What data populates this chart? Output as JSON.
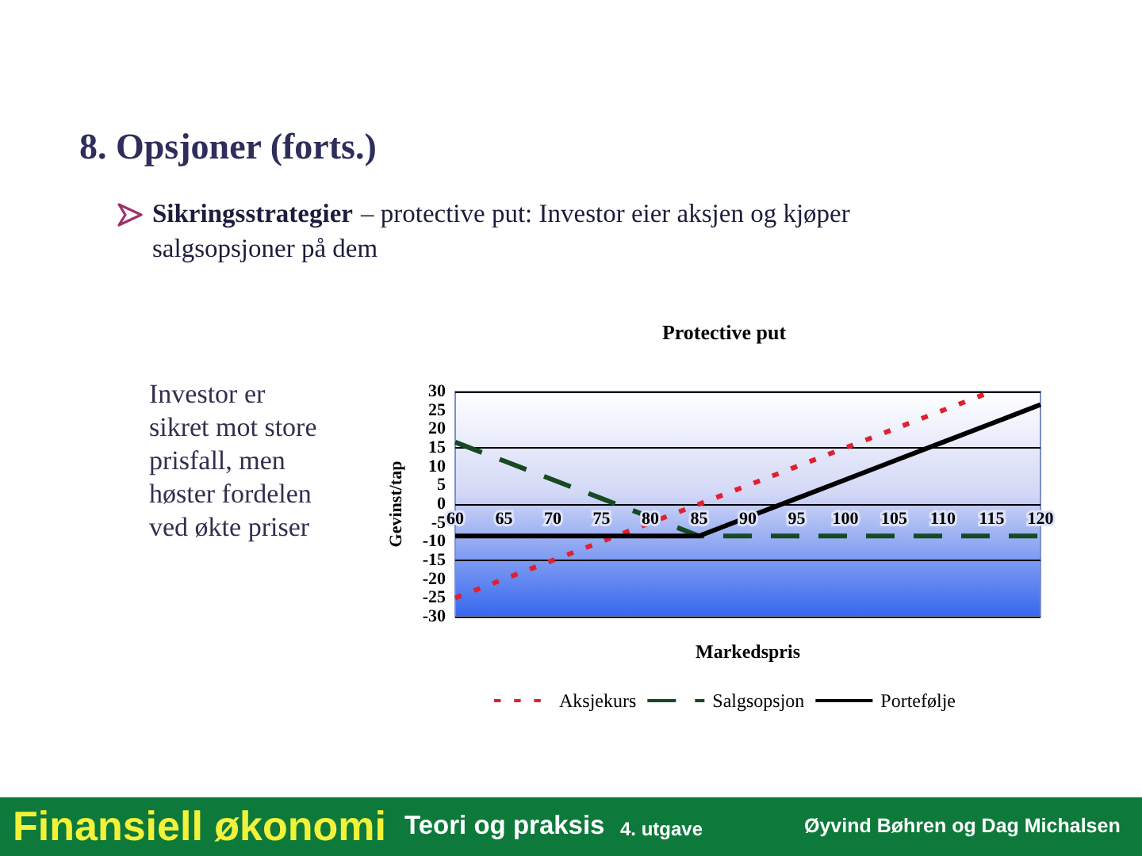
{
  "chart_data": {
    "type": "line",
    "title": "Protective put",
    "xlabel": "Markedspris",
    "ylabel": "Gevinst/tap",
    "annotations": [
      "8. Opsjoner (forts.)",
      "Sikringsstrategier",
      "– protective put:  Investor eier aksjen og kjøper",
      "salgsopsjoner på dem",
      "Investor er sikret mot store prisfall, men høster fordelen ved økte priser",
      "Finansiell økonomi",
      "Teori og praksis",
      "4. utgave",
      "Øyvind Bøhren og Dag Michalsen"
    ],
    "x": [
      60,
      65,
      70,
      75,
      80,
      85,
      90,
      95,
      100,
      105,
      110,
      115,
      120
    ],
    "series": [
      {
        "name": "Aksjekurs",
        "color": "#e0202e",
        "line_style": "dotted",
        "values": [
          -25,
          -20,
          -15,
          -10,
          -5,
          0,
          5,
          10,
          15,
          20,
          25,
          30,
          null
        ]
      },
      {
        "name": "Salgsopsjon",
        "color": "#154a22",
        "line_style": "dashed",
        "values": [
          16.5,
          11.5,
          6.5,
          1.5,
          -3.5,
          -8.5,
          -8.5,
          -8.5,
          -8.5,
          -8.5,
          -8.5,
          -8.5,
          -8.5
        ]
      },
      {
        "name": "Portefølje",
        "color": "#000000",
        "line_style": "solid",
        "values": [
          -8.5,
          -8.5,
          -8.5,
          -8.5,
          -8.5,
          -8.5,
          -3.5,
          1.5,
          6.5,
          11.5,
          16.5,
          21.5,
          26.5
        ]
      }
    ],
    "xlim": [
      60,
      120
    ],
    "xticks": [
      60,
      65,
      70,
      75,
      80,
      85,
      90,
      95,
      100,
      105,
      110,
      115,
      120
    ],
    "ylim": [
      -30,
      30
    ],
    "yticks": [
      -30,
      -25,
      -20,
      -15,
      -10,
      -5,
      0,
      5,
      10,
      15,
      20,
      25,
      30
    ],
    "grid": "y",
    "legend": "bottom",
    "marker": "none"
  }
}
